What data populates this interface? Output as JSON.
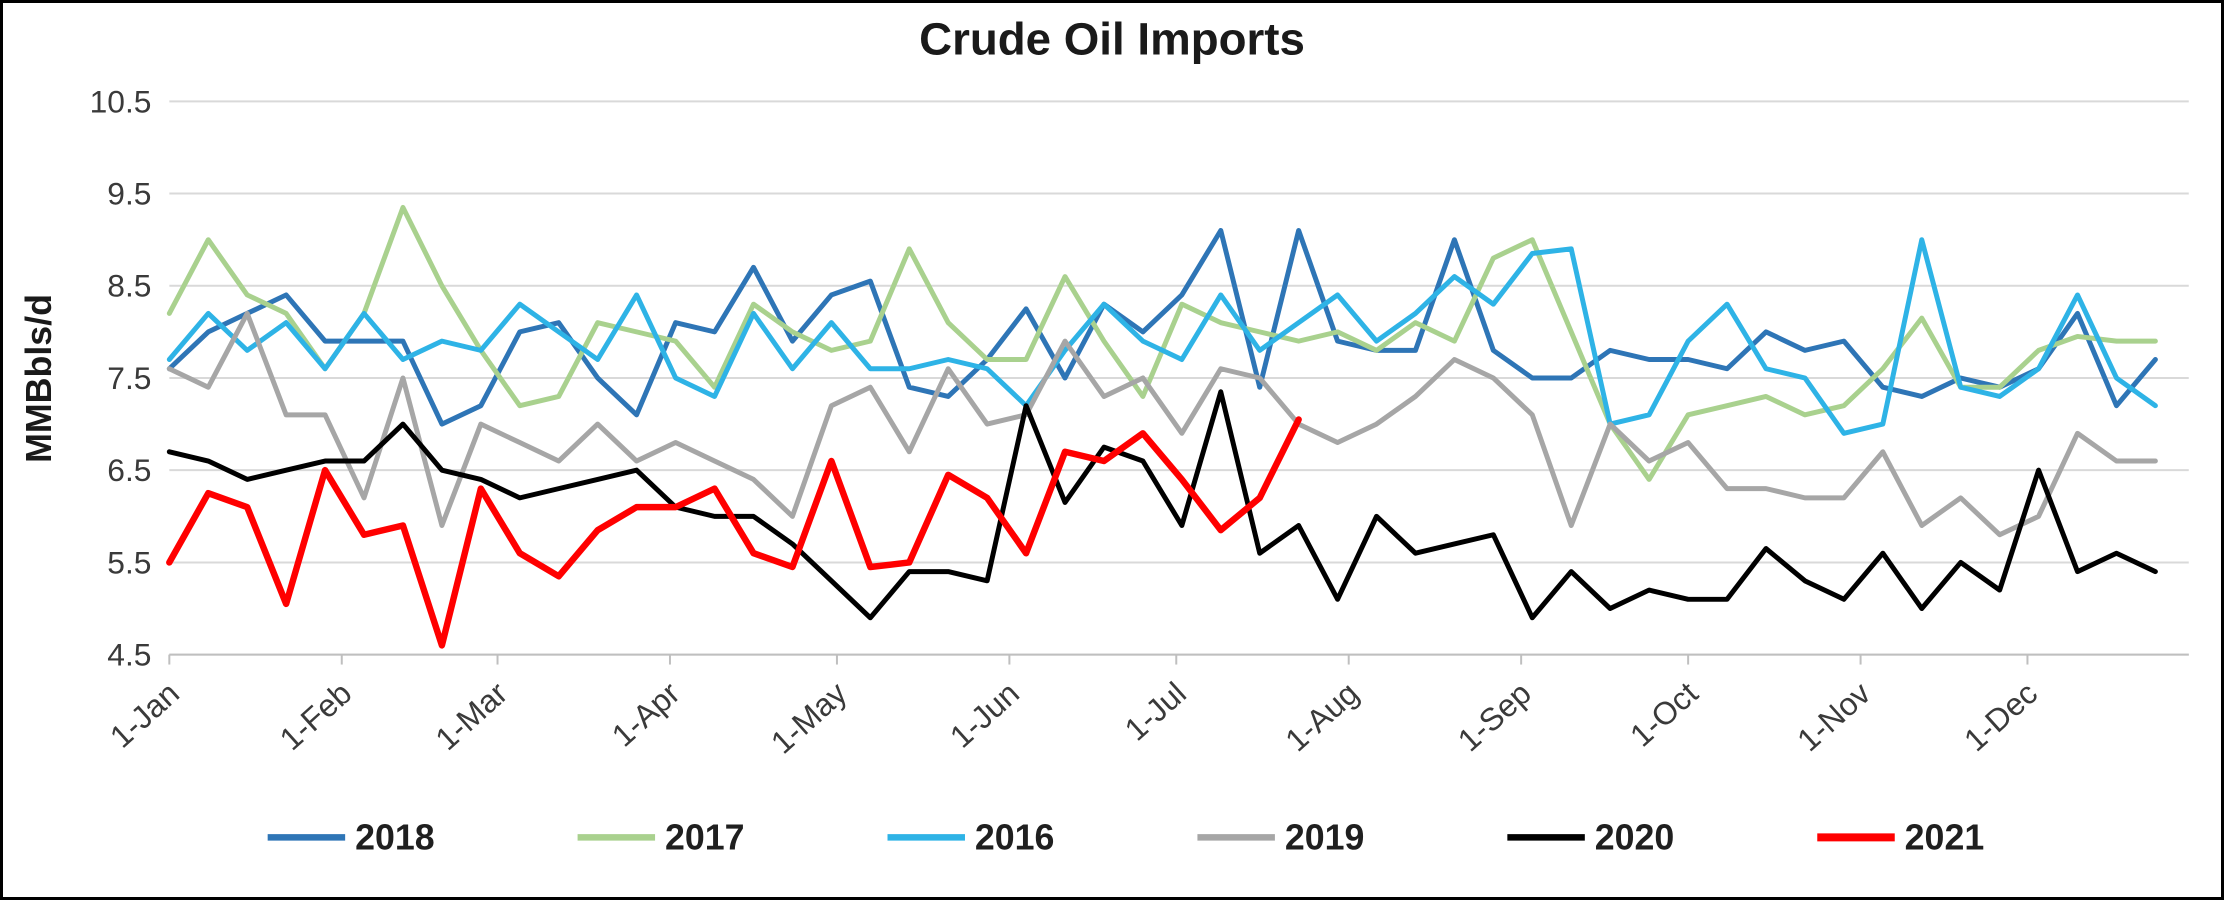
{
  "chart_data": {
    "type": "line",
    "title": "Crude Oil Imports",
    "ylabel": "MMBbls/d",
    "ylim": [
      4.5,
      10.5
    ],
    "yticks": [
      4.5,
      5.5,
      6.5,
      7.5,
      8.5,
      9.5,
      10.5
    ],
    "grid": "horizontal",
    "legend_position": "bottom",
    "x_unit": "weekly",
    "days_in_year": 364,
    "xticks": [
      {
        "label": "1-Jan",
        "day": 1
      },
      {
        "label": "1-Feb",
        "day": 32
      },
      {
        "label": "1-Mar",
        "day": 60
      },
      {
        "label": "1-Apr",
        "day": 91
      },
      {
        "label": "1-May",
        "day": 121
      },
      {
        "label": "1-Jun",
        "day": 152
      },
      {
        "label": "1-Jul",
        "day": 182
      },
      {
        "label": "1-Aug",
        "day": 213
      },
      {
        "label": "1-Sep",
        "day": 244
      },
      {
        "label": "1-Oct",
        "day": 274
      },
      {
        "label": "1-Nov",
        "day": 305
      },
      {
        "label": "1-Dec",
        "day": 335
      }
    ],
    "style": {
      "gridline_color": "#D9D9D9",
      "axis_color": "#BFBFBF",
      "tick_label_color": "#3A3A3A",
      "title_color": "#1A1A1A",
      "legend_label_color": "#1F1F1F",
      "background": "#FFFFFF",
      "border_color": "#000000"
    },
    "series": [
      {
        "name": "2018",
        "color": "#2E75B6",
        "line_width": 5,
        "start_day": 1,
        "interval_days": 7,
        "values": [
          7.6,
          8.0,
          8.2,
          8.4,
          7.9,
          7.9,
          7.9,
          7.0,
          7.2,
          8.0,
          8.1,
          7.5,
          7.1,
          8.1,
          8.0,
          8.7,
          7.9,
          8.4,
          8.55,
          7.4,
          7.3,
          7.7,
          8.25,
          7.5,
          8.3,
          8.0,
          8.4,
          9.1,
          7.4,
          9.1,
          7.9,
          7.8,
          7.8,
          9.0,
          7.8,
          7.5,
          7.5,
          7.8,
          7.7,
          7.7,
          7.6,
          8.0,
          7.8,
          7.9,
          7.4,
          7.3,
          7.5,
          7.4,
          7.6,
          8.2,
          7.2,
          7.7
        ]
      },
      {
        "name": "2017",
        "color": "#A9D18E",
        "line_width": 5,
        "start_day": 1,
        "interval_days": 7,
        "values": [
          8.2,
          9.0,
          8.4,
          8.2,
          7.6,
          8.2,
          9.35,
          8.5,
          7.8,
          7.2,
          7.3,
          8.1,
          8.0,
          7.9,
          7.4,
          8.3,
          8.0,
          7.8,
          7.9,
          8.9,
          8.1,
          7.7,
          7.7,
          8.6,
          7.9,
          7.3,
          8.3,
          8.1,
          8.0,
          7.9,
          8.0,
          7.8,
          8.1,
          7.9,
          8.8,
          9.0,
          8.0,
          7.0,
          6.4,
          7.1,
          7.2,
          7.3,
          7.1,
          7.2,
          7.6,
          8.15,
          7.4,
          7.4,
          7.8,
          7.95,
          7.9,
          7.9
        ]
      },
      {
        "name": "2016",
        "color": "#2EB3E6",
        "line_width": 5,
        "start_day": 1,
        "interval_days": 7,
        "values": [
          7.7,
          8.2,
          7.8,
          8.1,
          7.6,
          8.2,
          7.7,
          7.9,
          7.8,
          8.3,
          8.0,
          7.7,
          8.4,
          7.5,
          7.3,
          8.2,
          7.6,
          8.1,
          7.6,
          7.6,
          7.7,
          7.6,
          7.2,
          7.8,
          8.3,
          7.9,
          7.7,
          8.4,
          7.8,
          8.1,
          8.4,
          7.9,
          8.2,
          8.6,
          8.3,
          8.85,
          8.9,
          7.0,
          7.1,
          7.9,
          8.3,
          7.6,
          7.5,
          6.9,
          7.0,
          9.0,
          7.4,
          7.3,
          7.6,
          8.4,
          7.5,
          7.2
        ]
      },
      {
        "name": "2019",
        "color": "#A6A6A6",
        "line_width": 5,
        "start_day": 1,
        "interval_days": 7,
        "values": [
          7.6,
          7.4,
          8.2,
          7.1,
          7.1,
          6.2,
          7.5,
          5.9,
          7.0,
          6.8,
          6.6,
          7.0,
          6.6,
          6.8,
          6.6,
          6.4,
          6.0,
          7.2,
          7.4,
          6.7,
          7.6,
          7.0,
          7.1,
          7.9,
          7.3,
          7.5,
          6.9,
          7.6,
          7.5,
          7.0,
          6.8,
          7.0,
          7.3,
          7.7,
          7.5,
          7.1,
          5.9,
          7.0,
          6.6,
          6.8,
          6.3,
          6.3,
          6.2,
          6.2,
          6.7,
          5.9,
          6.2,
          5.8,
          6.0,
          6.9,
          6.6,
          6.6
        ]
      },
      {
        "name": "2020",
        "color": "#000000",
        "line_width": 5,
        "start_day": 1,
        "interval_days": 7,
        "values": [
          6.7,
          6.6,
          6.4,
          6.5,
          6.6,
          6.6,
          7.0,
          6.5,
          6.4,
          6.2,
          6.3,
          6.4,
          6.5,
          6.1,
          6.0,
          6.0,
          5.7,
          5.3,
          4.9,
          5.4,
          5.4,
          5.3,
          7.2,
          6.15,
          6.75,
          6.6,
          5.9,
          7.35,
          5.6,
          5.9,
          5.1,
          6.0,
          5.6,
          5.7,
          5.8,
          4.9,
          5.4,
          5.0,
          5.2,
          5.1,
          5.1,
          5.65,
          5.3,
          5.1,
          5.6,
          5.0,
          5.5,
          5.2,
          6.5,
          5.4,
          5.6,
          5.4
        ]
      },
      {
        "name": "2021",
        "color": "#FF0000",
        "line_width": 6.5,
        "start_day": 1,
        "interval_days": 7,
        "values": [
          5.5,
          6.25,
          6.1,
          5.05,
          6.5,
          5.8,
          5.9,
          4.6,
          6.3,
          5.6,
          5.35,
          5.85,
          6.1,
          6.1,
          6.3,
          5.6,
          5.45,
          6.6,
          5.45,
          5.5,
          6.45,
          6.2,
          5.6,
          6.7,
          6.6,
          6.9,
          6.4,
          5.85,
          6.2,
          7.05
        ]
      }
    ]
  }
}
